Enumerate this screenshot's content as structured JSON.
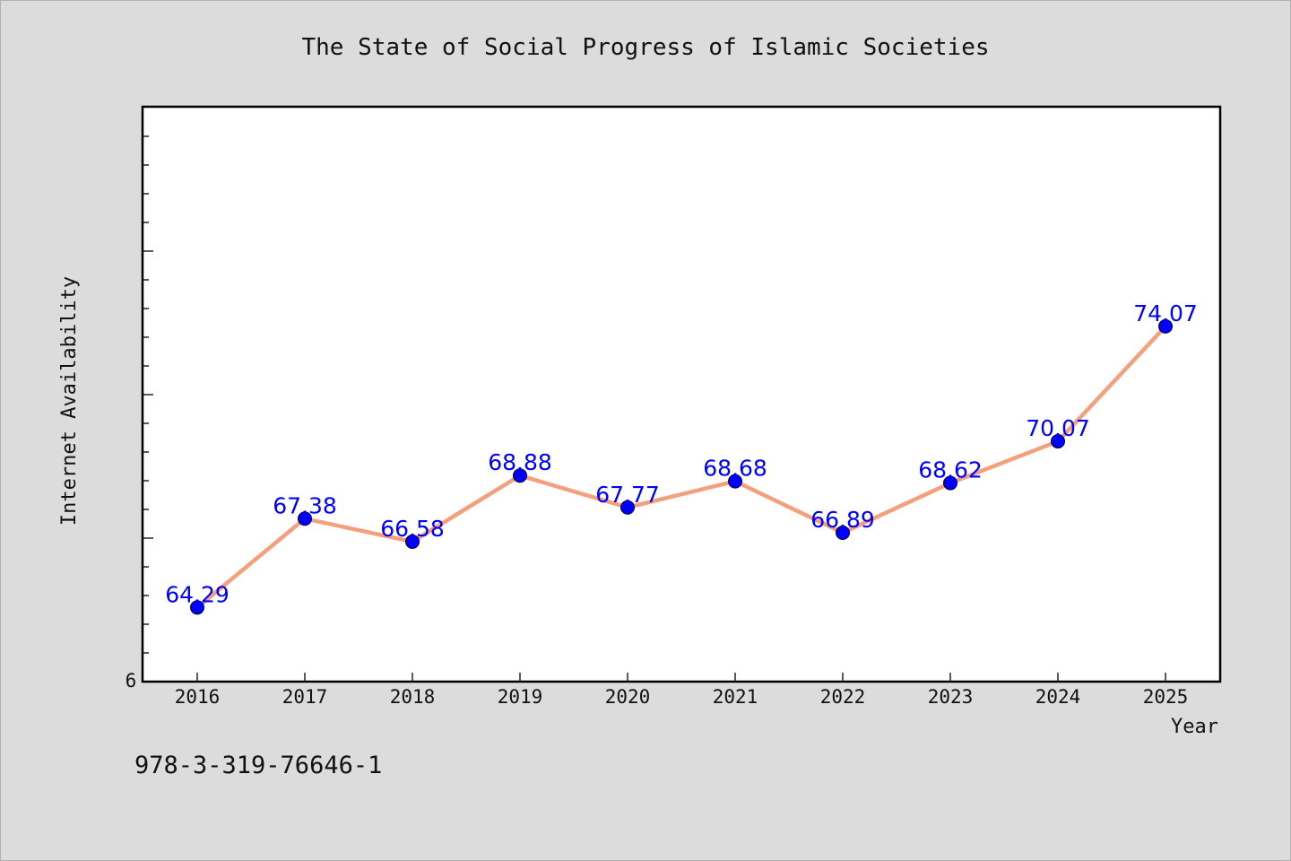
{
  "chart_data": {
    "type": "line",
    "title": "The State of Social Progress of Islamic Societies",
    "xlabel": "Year",
    "ylabel": "Internet Availability",
    "categories": [
      "2016",
      "2017",
      "2018",
      "2019",
      "2020",
      "2021",
      "2022",
      "2023",
      "2024",
      "2025"
    ],
    "series": [
      {
        "values": [
          64.29,
          67.38,
          66.58,
          68.88,
          67.77,
          68.68,
          66.89,
          68.62,
          70.07,
          74.07
        ],
        "labels": [
          "64.29",
          "67.38",
          "66.58",
          "68.88",
          "67.77",
          "68.68",
          "66.89",
          "68.62",
          "70.07",
          "74.07"
        ],
        "line_color": "#f4a07c",
        "marker_color": "#0000ff"
      }
    ],
    "ylim": [
      61.71,
      81.71
    ],
    "y_tick_label": "6",
    "grid": false,
    "legend": "none"
  },
  "footer": {
    "isbn": "978-3-319-76646-1"
  },
  "colors": {
    "background": "#dcdcdc",
    "plot_area": "#ffffff"
  }
}
